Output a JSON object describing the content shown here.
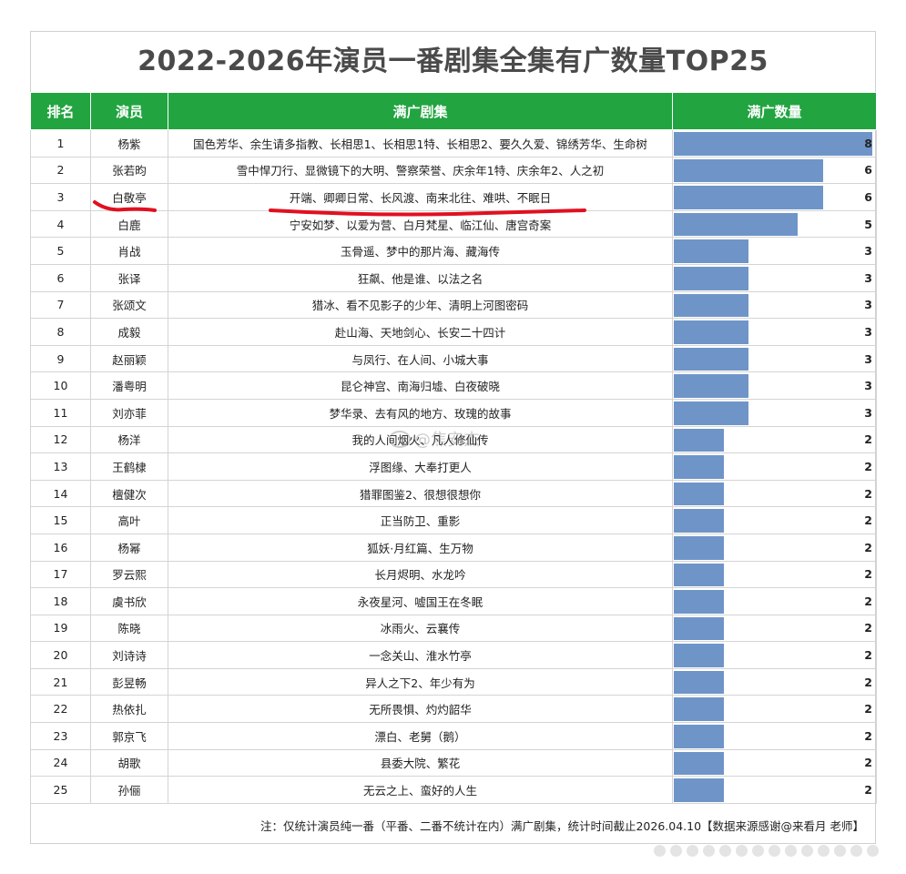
{
  "title": "2022-2026年演员一番剧集全集有广数量TOP25",
  "columns": {
    "rank": "排名",
    "actor": "演员",
    "shows": "满广剧集",
    "count": "满广数量"
  },
  "max_count": 8,
  "rows": [
    {
      "rank": "1",
      "actor": "杨紫",
      "shows": "国色芳华、余生请多指教、长相思1、长相思1特、长相思2、要久久爱、锦绣芳华、生命树",
      "count": 8
    },
    {
      "rank": "2",
      "actor": "张若昀",
      "shows": "雪中悍刀行、显微镜下的大明、警察荣誉、庆余年1特、庆余年2、人之初",
      "count": 6
    },
    {
      "rank": "3",
      "actor": "白敬亭",
      "shows": "开端、卿卿日常、长风渡、南来北往、难哄、不眠日",
      "count": 6
    },
    {
      "rank": "4",
      "actor": "白鹿",
      "shows": "宁安如梦、以爱为营、白月梵星、临江仙、唐宫奇案",
      "count": 5
    },
    {
      "rank": "5",
      "actor": "肖战",
      "shows": "玉骨遥、梦中的那片海、藏海传",
      "count": 3
    },
    {
      "rank": "6",
      "actor": "张译",
      "shows": "狂飙、他是谁、以法之名",
      "count": 3
    },
    {
      "rank": "7",
      "actor": "张颂文",
      "shows": "猎冰、看不见影子的少年、清明上河图密码",
      "count": 3
    },
    {
      "rank": "8",
      "actor": "成毅",
      "shows": "赴山海、天地剑心、长安二十四计",
      "count": 3
    },
    {
      "rank": "9",
      "actor": "赵丽颖",
      "shows": "与凤行、在人间、小城大事",
      "count": 3
    },
    {
      "rank": "10",
      "actor": "潘粤明",
      "shows": "昆仑神宫、南海归墟、白夜破晓",
      "count": 3
    },
    {
      "rank": "11",
      "actor": "刘亦菲",
      "shows": "梦华录、去有风的地方、玫瑰的故事",
      "count": 3
    },
    {
      "rank": "12",
      "actor": "杨洋",
      "shows": "我的人间烟火、凡人修仙传",
      "count": 2
    },
    {
      "rank": "13",
      "actor": "王鹤棣",
      "shows": "浮图缘、大奉打更人",
      "count": 2
    },
    {
      "rank": "14",
      "actor": "檀健次",
      "shows": "猎罪图鉴2、很想很想你",
      "count": 2
    },
    {
      "rank": "15",
      "actor": "高叶",
      "shows": "正当防卫、重影",
      "count": 2
    },
    {
      "rank": "16",
      "actor": "杨幂",
      "shows": "狐妖·月红篇、生万物",
      "count": 2
    },
    {
      "rank": "17",
      "actor": "罗云熙",
      "shows": "长月烬明、水龙吟",
      "count": 2
    },
    {
      "rank": "18",
      "actor": "虞书欣",
      "shows": "永夜星河、嘘国王在冬眠",
      "count": 2
    },
    {
      "rank": "19",
      "actor": "陈晓",
      "shows": "冰雨火、云襄传",
      "count": 2
    },
    {
      "rank": "20",
      "actor": "刘诗诗",
      "shows": "一念关山、淮水竹亭",
      "count": 2
    },
    {
      "rank": "21",
      "actor": "彭昱畅",
      "shows": "异人之下2、年少有为",
      "count": 2
    },
    {
      "rank": "22",
      "actor": "热依扎",
      "shows": "无所畏惧、灼灼韶华",
      "count": 2
    },
    {
      "rank": "23",
      "actor": "郭京飞",
      "shows": "漂白、老舅（鹅）",
      "count": 2
    },
    {
      "rank": "24",
      "actor": "胡歌",
      "shows": "县委大院、繁花",
      "count": 2
    },
    {
      "rank": "25",
      "actor": "孙俪",
      "shows": "无云之上、蛮好的人生",
      "count": 2
    }
  ],
  "note": "注：仅统计演员纯一番（平番、二番不统计在内）满广剧集，统计时间截止2026.04.10【数据来源感谢@来看月 老师】",
  "watermark": "@焦安杰",
  "colors": {
    "header": "#22a441",
    "bar": "#6f95c8",
    "annotation": "#e01020"
  }
}
